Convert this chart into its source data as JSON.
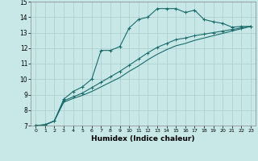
{
  "xlabel": "Humidex (Indice chaleur)",
  "bg_color": "#c8e8e8",
  "grid_color": "#aacccc",
  "line_color": "#1a6b6b",
  "xlim": [
    -0.5,
    23.5
  ],
  "ylim": [
    7,
    15
  ],
  "xticks": [
    0,
    1,
    2,
    3,
    4,
    5,
    6,
    7,
    8,
    9,
    10,
    11,
    12,
    13,
    14,
    15,
    16,
    17,
    18,
    19,
    20,
    21,
    22,
    23
  ],
  "yticks": [
    7,
    8,
    9,
    10,
    11,
    12,
    13,
    14,
    15
  ],
  "line1_x": [
    0,
    1,
    2,
    3,
    4,
    5,
    6,
    7,
    8,
    9,
    10,
    11,
    12,
    13,
    14,
    15,
    16,
    17,
    18,
    19,
    20,
    21,
    22,
    23
  ],
  "line1_y": [
    7.0,
    7.05,
    7.3,
    8.7,
    9.2,
    9.5,
    10.0,
    11.85,
    11.85,
    12.1,
    13.3,
    13.85,
    14.0,
    14.55,
    14.55,
    14.55,
    14.3,
    14.45,
    13.85,
    13.7,
    13.6,
    13.35,
    13.4,
    13.4
  ],
  "line2_x": [
    0,
    1,
    2,
    3,
    4,
    5,
    6,
    7,
    8,
    9,
    10,
    11,
    12,
    13,
    14,
    15,
    16,
    17,
    18,
    19,
    20,
    21,
    22,
    23
  ],
  "line2_y": [
    7.0,
    7.05,
    7.3,
    8.6,
    8.85,
    9.1,
    9.45,
    9.8,
    10.15,
    10.5,
    10.9,
    11.3,
    11.7,
    12.05,
    12.3,
    12.55,
    12.65,
    12.8,
    12.9,
    13.0,
    13.1,
    13.2,
    13.3,
    13.4
  ],
  "line3_x": [
    0,
    1,
    2,
    3,
    4,
    5,
    6,
    7,
    8,
    9,
    10,
    11,
    12,
    13,
    14,
    15,
    16,
    17,
    18,
    19,
    20,
    21,
    22,
    23
  ],
  "line3_y": [
    7.0,
    7.05,
    7.3,
    8.5,
    8.75,
    8.95,
    9.2,
    9.5,
    9.8,
    10.1,
    10.5,
    10.85,
    11.25,
    11.6,
    11.9,
    12.15,
    12.3,
    12.5,
    12.65,
    12.8,
    12.95,
    13.1,
    13.25,
    13.4
  ]
}
